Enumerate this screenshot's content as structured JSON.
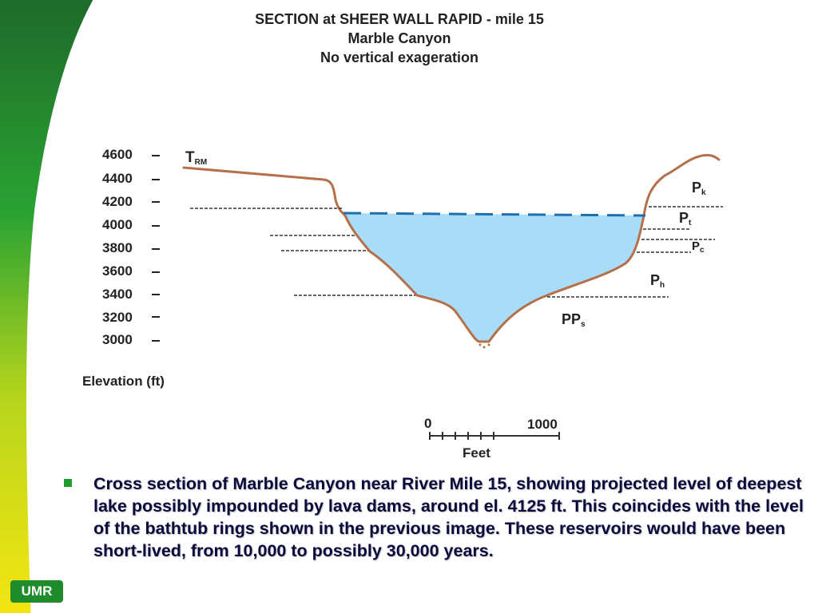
{
  "title": {
    "line1": "SECTION at SHEER WALL RAPID - mile 15",
    "line2": "Marble Canyon",
    "line3": "No vertical exageration"
  },
  "elevation_axis": {
    "title": "Elevation (ft)",
    "ticks": [
      "4600",
      "4400",
      "4200",
      "4000",
      "3800",
      "3600",
      "3400",
      "3200",
      "3000"
    ]
  },
  "rock_units": [
    {
      "main": "T",
      "sub": "RM"
    },
    {
      "main": "P",
      "sub": "k"
    },
    {
      "main": "P",
      "sub": "t"
    },
    {
      "main": "P",
      "sub": "c"
    },
    {
      "main": "P",
      "sub": "h"
    },
    {
      "main": "PP",
      "sub": "s"
    }
  ],
  "scale_bar": {
    "start": "0",
    "end": "1000",
    "unit": "Feet"
  },
  "caption": "Cross section of Marble Canyon near River Mile 15, showing projected level of deepest lake possibly impounded by lava dams, around el. 4125 ft.  This coincides with the level of the bathtub rings shown in the previous image.  These reservoirs would have been short-lived, from 10,000 to possibly 30,000 years.",
  "logo": "UMR",
  "colors": {
    "lake": "#a8dcf8",
    "lake_surface": "#1f6fae",
    "canyon_profile": "#b5704a",
    "contact_lines": "#333333",
    "caption_text": "#0a0a3c",
    "side_band_green": "#1f9e2e",
    "side_band_yellow": "#f4e511"
  }
}
